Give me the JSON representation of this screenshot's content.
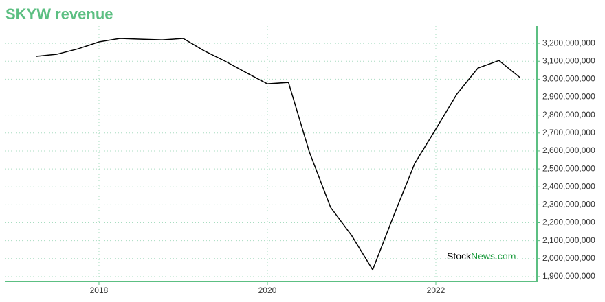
{
  "chart_data": {
    "type": "line",
    "title": "SKYW revenue",
    "x": [
      2017.25,
      2017.5,
      2017.75,
      2018,
      2018.25,
      2018.5,
      2018.75,
      2019,
      2019.25,
      2019.5,
      2019.75,
      2020,
      2020.25,
      2020.5,
      2020.75,
      2021,
      2021.25,
      2021.5,
      2021.75,
      2022,
      2022.25,
      2022.5,
      2022.75,
      2023
    ],
    "series": [
      {
        "name": "SKYW revenue",
        "color": "#000000",
        "values": [
          3127000000,
          3139000000,
          3169000000,
          3208000000,
          3227000000,
          3223000000,
          3219000000,
          3227000000,
          3158000000,
          3100000000,
          3036000000,
          2974000000,
          2982000000,
          2592000000,
          2286000000,
          2129000000,
          1938000000,
          2240000000,
          2531000000,
          2722000000,
          2917000000,
          3062000000,
          3104000000,
          3009000000
        ]
      }
    ],
    "xlim": [
      2016.89,
      2023.2
    ],
    "xticks": [
      2018,
      2020,
      2022
    ],
    "ylim": [
      1873000000,
      3296000000
    ],
    "yticks": [
      {
        "value": 1900000000,
        "label": "1,900,000,000"
      },
      {
        "value": 2000000000,
        "label": "2,000,000,000"
      },
      {
        "value": 2100000000,
        "label": "2,100,000,000"
      },
      {
        "value": 2200000000,
        "label": "2,200,000,000"
      },
      {
        "value": 2300000000,
        "label": "2,300,000,000"
      },
      {
        "value": 2400000000,
        "label": "2,400,000,000"
      },
      {
        "value": 2500000000,
        "label": "2,500,000,000"
      },
      {
        "value": 2600000000,
        "label": "2,600,000,000"
      },
      {
        "value": 2700000000,
        "label": "2,700,000,000"
      },
      {
        "value": 2800000000,
        "label": "2,800,000,000"
      },
      {
        "value": 2900000000,
        "label": "2,900,000,000"
      },
      {
        "value": 3000000000,
        "label": "3,000,000,000"
      },
      {
        "value": 3100000000,
        "label": "3,100,000,000"
      },
      {
        "value": 3200000000,
        "label": "3,200,000,000"
      }
    ],
    "grid": true,
    "axis_color": "#5cbf82",
    "watermark": [
      "Stock",
      "News.com"
    ]
  }
}
